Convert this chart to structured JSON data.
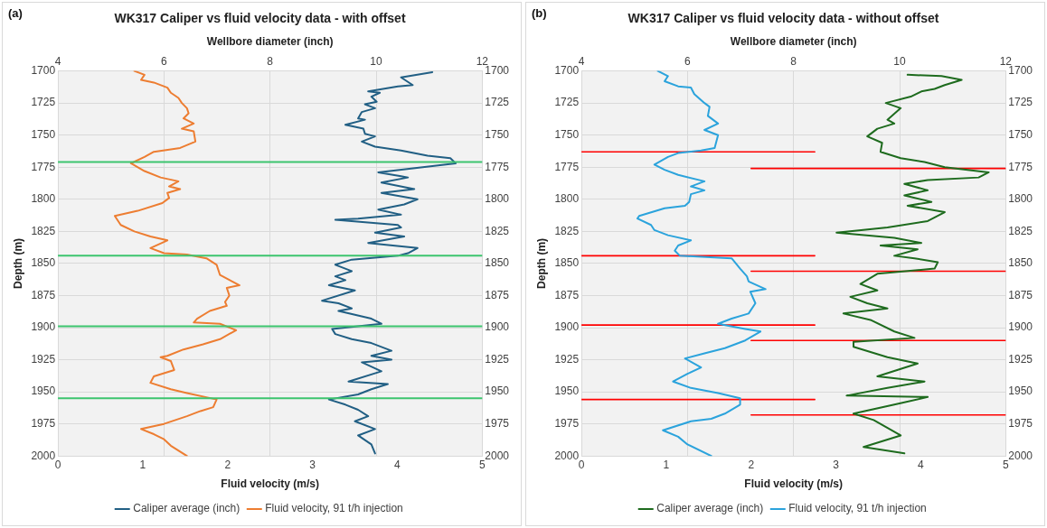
{
  "chart_data": [
    {
      "type": "line",
      "title": "WK317 Caliper vs fluid velocity data - with offset",
      "annotations": [
        "(a)"
      ],
      "xlabel": "Fluid velocity (m/s)",
      "x2label": "Wellbore diameter (inch)",
      "ylabel": "Depth (m)",
      "xlim": [
        0,
        5
      ],
      "xticks": [
        0,
        1,
        2,
        3,
        4,
        5
      ],
      "x2lim": [
        4,
        12
      ],
      "x2ticks": [
        4,
        6,
        8,
        10,
        12
      ],
      "ylim": [
        2000,
        1700
      ],
      "yticks": [
        1700,
        1725,
        1750,
        1775,
        1800,
        1825,
        1850,
        1875,
        1900,
        1925,
        1950,
        1975,
        2000
      ],
      "y2lim": [
        2000,
        1700
      ],
      "y2ticks": [
        1700,
        1725,
        1750,
        1775,
        1800,
        1825,
        1850,
        1875,
        1900,
        1925,
        1950,
        1975,
        2000
      ],
      "grid": true,
      "legend": "bottom",
      "marker": "none",
      "line_style": "solid",
      "ref_lines": [
        {
          "axis": "y",
          "value": 1771,
          "color": "#3cc46e"
        },
        {
          "axis": "y",
          "value": 1844,
          "color": "#3cc46e"
        },
        {
          "axis": "y",
          "value": 1899,
          "color": "#3cc46e"
        },
        {
          "axis": "y",
          "value": 1955,
          "color": "#3cc46e"
        }
      ],
      "series": [
        {
          "name": "Caliper average (inch)",
          "color": "#215f84",
          "axis": "x2",
          "x": [
            11.06,
            10.47,
            10.69,
            10.41,
            9.85,
            10.07,
            9.91,
            10.01,
            9.79,
            9.98,
            9.73,
            9.66,
            9.79,
            9.42,
            9.76,
            9.79,
            9.98,
            9.73,
            9.98,
            10.47,
            10.97,
            11.4,
            11.5,
            10.66,
            10.04,
            10.47,
            10.6,
            10.1,
            10.72,
            10.1,
            10.78,
            10.53,
            10.04,
            10.47,
            9.66,
            9.23,
            10.41,
            10.47,
            9.98,
            10.53,
            9.85,
            10.78,
            10.6,
            10.41,
            9.54,
            9.23,
            9.54,
            9.23,
            9.42,
            9.11,
            9.6,
            8.98,
            9.29,
            9.54,
            9.29,
            9.91,
            10.1,
            9.17,
            9.23,
            9.54,
            9.91,
            10.29,
            9.91,
            10.29,
            9.73,
            10.1,
            9.48,
            10.22,
            9.91,
            9.66,
            9.11,
            9.42,
            9.66,
            9.85,
            9.6,
            9.98,
            9.66,
            9.91,
            9.98
          ],
          "values": [
            1701,
            1705,
            1711,
            1712,
            1716,
            1717,
            1720,
            1724,
            1726,
            1729,
            1732,
            1737,
            1738,
            1742,
            1745,
            1749,
            1751,
            1755,
            1759,
            1762,
            1766,
            1768,
            1772,
            1776,
            1779,
            1782,
            1783,
            1787,
            1792,
            1795,
            1800,
            1804,
            1808,
            1812,
            1815,
            1816,
            1820,
            1822,
            1826,
            1829,
            1834,
            1838,
            1842,
            1844,
            1847,
            1851,
            1856,
            1860,
            1863,
            1867,
            1871,
            1879,
            1881,
            1885,
            1887,
            1893,
            1897,
            1901,
            1905,
            1909,
            1912,
            1918,
            1922,
            1925,
            1927,
            1934,
            1942,
            1944,
            1948,
            1952,
            1956,
            1960,
            1964,
            1969,
            1973,
            1979,
            1984,
            1991,
            1998
          ]
        },
        {
          "name": "Fluid velocity, 91 t/h injection",
          "color": "#ed7d31",
          "x": [
            0.9,
            1.02,
            0.98,
            1.13,
            1.29,
            1.33,
            1.42,
            1.46,
            1.52,
            1.54,
            1.48,
            1.6,
            1.46,
            1.6,
            1.62,
            1.44,
            1.13,
            1.02,
            0.86,
            1.02,
            1.21,
            1.42,
            1.31,
            1.44,
            1.29,
            1.31,
            1.23,
            0.94,
            0.67,
            0.74,
            0.9,
            1.09,
            1.29,
            1.09,
            1.25,
            1.52,
            1.75,
            1.87,
            1.91,
            2.14,
            1.99,
            2.02,
            1.97,
            1.99,
            1.79,
            1.64,
            1.6,
            1.91,
            2.1,
            1.91,
            1.71,
            1.48,
            1.29,
            1.21,
            1.33,
            1.37,
            1.13,
            1.09,
            1.33,
            1.52,
            1.87,
            1.83,
            1.68,
            1.52,
            1.25,
            0.98,
            1.13,
            1.25,
            1.33,
            1.52
          ],
          "values": [
            1700,
            1703,
            1707,
            1709,
            1713,
            1717,
            1721,
            1725,
            1729,
            1733,
            1737,
            1741,
            1745,
            1747,
            1755,
            1760,
            1763,
            1767,
            1772,
            1778,
            1783,
            1786,
            1790,
            1792,
            1795,
            1799,
            1803,
            1809,
            1813,
            1820,
            1825,
            1829,
            1832,
            1838,
            1842,
            1843,
            1846,
            1851,
            1859,
            1867,
            1869,
            1875,
            1880,
            1883,
            1887,
            1893,
            1896,
            1897,
            1902,
            1909,
            1913,
            1917,
            1922,
            1923,
            1926,
            1933,
            1938,
            1943,
            1948,
            1951,
            1956,
            1962,
            1965,
            1969,
            1975,
            1979,
            1983,
            1987,
            1992,
            2000
          ]
        }
      ]
    },
    {
      "type": "line",
      "title": "WK317 Caliper vs fluid velocity data - without offset",
      "annotations": [
        "(b)"
      ],
      "xlabel": "Fluid velocity (m/s)",
      "x2label": "Wellbore diameter (inch)",
      "ylabel": "Depth (m)",
      "xlim": [
        0,
        5
      ],
      "xticks": [
        0,
        1,
        2,
        3,
        4,
        5
      ],
      "x2lim": [
        4,
        12
      ],
      "x2ticks": [
        4,
        6,
        8,
        10,
        12
      ],
      "ylim": [
        2000,
        1700
      ],
      "yticks": [
        1700,
        1725,
        1750,
        1775,
        1800,
        1825,
        1850,
        1875,
        1900,
        1925,
        1950,
        1975,
        2000
      ],
      "y2lim": [
        2000,
        1700
      ],
      "y2ticks": [
        1700,
        1725,
        1750,
        1775,
        1800,
        1825,
        1850,
        1875,
        1900,
        1925,
        1950,
        1975,
        2000
      ],
      "grid": true,
      "legend": "bottom",
      "marker": "none",
      "line_style": "solid",
      "series": [
        {
          "name": "Caliper average (inch)",
          "color": "#1e6b1e",
          "axis": "x2",
          "x": [
            10.15,
            10.79,
            11.17,
            10.85,
            10.66,
            10.41,
            10.21,
            9.74,
            10.02,
            9.77,
            9.9,
            9.58,
            9.39,
            9.67,
            9.64,
            10.02,
            10.47,
            10.85,
            11.68,
            11.49,
            10.53,
            10.09,
            10.53,
            10.09,
            10.6,
            10.15,
            10.85,
            10.53,
            9.77,
            8.81,
            9.9,
            10.41,
            9.64,
            10.34,
            9.9,
            10.28,
            10.72,
            10.66,
            9.58,
            9.26,
            9.58,
            9.07,
            9.39,
            9.77,
            8.94,
            9.45,
            9.9,
            10.28,
            9.13,
            9.13,
            9.45,
            9.77,
            10.34,
            9.58,
            10.47,
            9.77,
            9.0,
            10.53,
            9.9,
            9.13,
            9.51,
            10.02,
            9.32,
            10.09
          ],
          "values": [
            1703,
            1704,
            1707,
            1711,
            1714,
            1716,
            1720,
            1725,
            1729,
            1738,
            1741,
            1745,
            1751,
            1756,
            1763,
            1768,
            1771,
            1775,
            1779,
            1783,
            1785,
            1788,
            1793,
            1797,
            1802,
            1805,
            1810,
            1817,
            1822,
            1826,
            1830,
            1834,
            1836,
            1839,
            1844,
            1846,
            1849,
            1854,
            1858,
            1866,
            1871,
            1876,
            1881,
            1885,
            1889,
            1894,
            1903,
            1908,
            1911,
            1915,
            1919,
            1923,
            1928,
            1938,
            1942,
            1947,
            1953,
            1954,
            1960,
            1967,
            1972,
            1984,
            1993,
            1998
          ]
        },
        {
          "name": "Fluid velocity, 91 t/h injection",
          "color": "#2ba3dc",
          "x": [
            0.9,
            1.02,
            0.98,
            1.14,
            1.29,
            1.33,
            1.45,
            1.51,
            1.49,
            1.61,
            1.45,
            1.61,
            1.57,
            1.41,
            1.14,
            1.02,
            0.86,
            0.98,
            1.14,
            1.45,
            1.29,
            1.45,
            1.29,
            1.27,
            1.22,
            0.98,
            0.68,
            0.66,
            0.82,
            0.86,
            1.02,
            1.29,
            1.14,
            1.1,
            1.16,
            1.77,
            1.87,
            1.95,
            1.97,
            2.17,
            1.99,
            2.05,
            1.97,
            1.77,
            1.61,
            1.93,
            2.11,
            1.93,
            1.69,
            1.45,
            1.22,
            1.41,
            1.25,
            1.08,
            1.29,
            1.61,
            1.87,
            1.87,
            1.69,
            1.53,
            1.29,
            0.96,
            1.14,
            1.25,
            1.53
          ],
          "values": [
            1700,
            1704,
            1708,
            1712,
            1713,
            1718,
            1725,
            1728,
            1735,
            1741,
            1746,
            1750,
            1760,
            1762,
            1764,
            1767,
            1773,
            1777,
            1781,
            1786,
            1790,
            1793,
            1796,
            1802,
            1805,
            1807,
            1813,
            1815,
            1820,
            1824,
            1828,
            1832,
            1836,
            1840,
            1844,
            1846,
            1854,
            1860,
            1864,
            1870,
            1872,
            1881,
            1889,
            1893,
            1897,
            1901,
            1903,
            1910,
            1916,
            1920,
            1924,
            1931,
            1936,
            1942,
            1947,
            1951,
            1955,
            1960,
            1967,
            1971,
            1973,
            1980,
            1985,
            1991,
            2000
          ]
        },
        {
          "type": "line",
          "color": "#ff0000",
          "x": [
            0,
            2.75
          ],
          "values": [
            1763,
            1763
          ]
        },
        {
          "type": "line",
          "color": "#ff0000",
          "x": [
            0,
            2.75
          ],
          "values": [
            1844,
            1844
          ]
        },
        {
          "type": "line",
          "color": "#ff0000",
          "x": [
            0,
            2.75
          ],
          "values": [
            1898,
            1898
          ]
        },
        {
          "type": "line",
          "color": "#ff0000",
          "x": [
            0,
            2.75
          ],
          "values": [
            1956,
            1956
          ]
        },
        {
          "type": "line",
          "color": "#ff0000",
          "axis": "x2",
          "x": [
            7.2,
            12
          ],
          "values": [
            1776,
            1776
          ]
        },
        {
          "type": "line",
          "color": "#ff0000",
          "axis": "x2",
          "x": [
            7.2,
            12
          ],
          "values": [
            1856,
            1856
          ]
        },
        {
          "type": "line",
          "color": "#ff0000",
          "axis": "x2",
          "x": [
            7.2,
            12
          ],
          "values": [
            1910,
            1910
          ]
        },
        {
          "type": "line",
          "color": "#ff0000",
          "axis": "x2",
          "x": [
            7.2,
            12
          ],
          "values": [
            1968,
            1968
          ]
        }
      ]
    }
  ]
}
